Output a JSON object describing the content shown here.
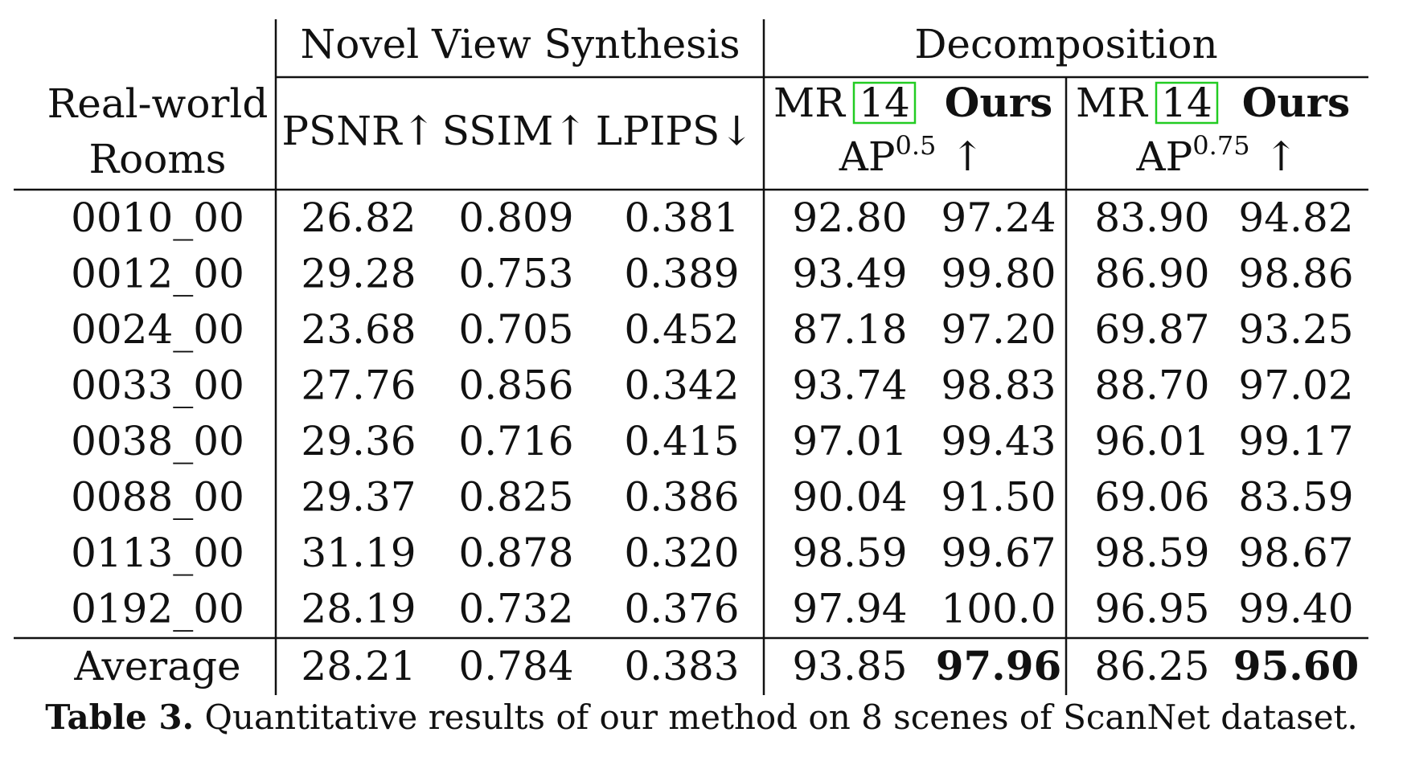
{
  "table": {
    "group_headers": {
      "novel_view_synthesis": "Novel View Synthesis",
      "decomposition": "Decomposition"
    },
    "row_header": [
      "Real-world",
      "Rooms"
    ],
    "metric_headers": {
      "psnr": "PSNR↑",
      "ssim": "SSIM↑",
      "lpips": "LPIPS↓"
    },
    "decomposition_sub": [
      {
        "mr": "MR",
        "ref": "14",
        "ours": "Ours",
        "ap_base": "AP",
        "ap_sup": "0.5",
        "arrow": "↑"
      },
      {
        "mr": "MR",
        "ref": "14",
        "ours": "Ours",
        "ap_base": "AP",
        "ap_sup": "0.75",
        "arrow": "↑"
      }
    ],
    "rows": [
      {
        "scene": "0010_00",
        "psnr": "26.82",
        "ssim": "0.809",
        "lpips": "0.381",
        "ap05_mr": "92.80",
        "ap05_ours": "97.24",
        "ap075_mr": "83.90",
        "ap075_ours": "94.82"
      },
      {
        "scene": "0012_00",
        "psnr": "29.28",
        "ssim": "0.753",
        "lpips": "0.389",
        "ap05_mr": "93.49",
        "ap05_ours": "99.80",
        "ap075_mr": "86.90",
        "ap075_ours": "98.86"
      },
      {
        "scene": "0024_00",
        "psnr": "23.68",
        "ssim": "0.705",
        "lpips": "0.452",
        "ap05_mr": "87.18",
        "ap05_ours": "97.20",
        "ap075_mr": "69.87",
        "ap075_ours": "93.25"
      },
      {
        "scene": "0033_00",
        "psnr": "27.76",
        "ssim": "0.856",
        "lpips": "0.342",
        "ap05_mr": "93.74",
        "ap05_ours": "98.83",
        "ap075_mr": "88.70",
        "ap075_ours": "97.02"
      },
      {
        "scene": "0038_00",
        "psnr": "29.36",
        "ssim": "0.716",
        "lpips": "0.415",
        "ap05_mr": "97.01",
        "ap05_ours": "99.43",
        "ap075_mr": "96.01",
        "ap075_ours": "99.17"
      },
      {
        "scene": "0088_00",
        "psnr": "29.37",
        "ssim": "0.825",
        "lpips": "0.386",
        "ap05_mr": "90.04",
        "ap05_ours": "91.50",
        "ap075_mr": "69.06",
        "ap075_ours": "83.59"
      },
      {
        "scene": "0113_00",
        "psnr": "31.19",
        "ssim": "0.878",
        "lpips": "0.320",
        "ap05_mr": "98.59",
        "ap05_ours": "99.67",
        "ap075_mr": "98.59",
        "ap075_ours": "98.67"
      },
      {
        "scene": "0192_00",
        "psnr": "28.19",
        "ssim": "0.732",
        "lpips": "0.376",
        "ap05_mr": "97.94",
        "ap05_ours": "100.0",
        "ap075_mr": "96.95",
        "ap075_ours": "99.40"
      }
    ],
    "average": {
      "scene": "Average",
      "psnr": "28.21",
      "ssim": "0.784",
      "lpips": "0.383",
      "ap05_mr": "93.85",
      "ap05_ours": "97.96",
      "ap075_mr": "86.25",
      "ap075_ours": "95.60"
    },
    "bold_average_keys": [
      "ap05_ours",
      "ap075_ours"
    ],
    "citation_box_color": "#22cc22"
  },
  "caption": {
    "label": "Table 3.",
    "text": "Quantitative results of our method on 8 scenes of ScanNet dataset."
  }
}
